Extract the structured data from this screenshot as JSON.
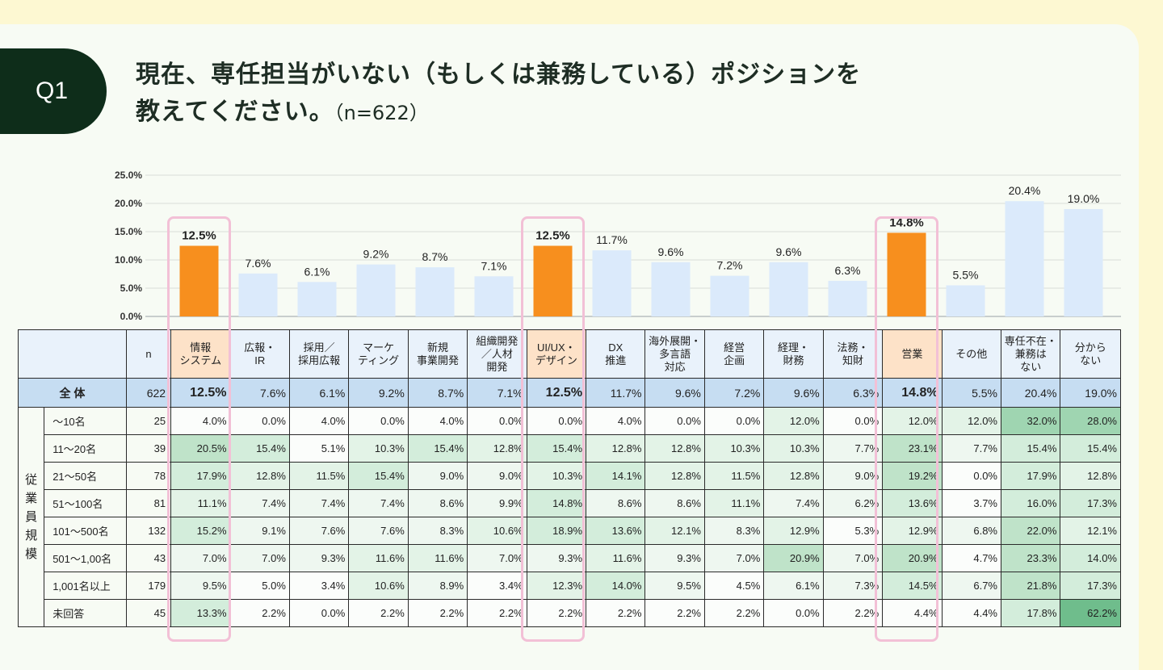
{
  "question": {
    "badge": "Q1",
    "title_line1": "現在、専任担当がいない（もしくは兼務している）ポジションを",
    "title_line2": "教えてください。",
    "n_note": "（n=622）"
  },
  "colors": {
    "highlight_bar": "#f78f1e",
    "normal_bar": "#dbeafb",
    "header_highlight": "#fde2c8",
    "total_row": "#c6ddf2",
    "highlight_frame": "#f2c0d6"
  },
  "chart_data": {
    "type": "bar",
    "categories": [
      "情報システム",
      "広報・IR",
      "採用／採用広報",
      "マーケティング",
      "新規事業開発",
      "組織開発／人材開発",
      "UI/UX・デザイン",
      "DX推進",
      "海外展開・多言語対応",
      "経営企画",
      "経理・財務",
      "法務・知財",
      "営業",
      "その他",
      "専任不在・兼務はない",
      "分からない"
    ],
    "values": [
      12.5,
      7.6,
      6.1,
      9.2,
      8.7,
      7.1,
      12.5,
      11.7,
      9.6,
      7.2,
      9.6,
      6.3,
      14.8,
      5.5,
      20.4,
      19.0
    ],
    "value_labels": [
      "12.5%",
      "7.6%",
      "6.1%",
      "9.2%",
      "8.7%",
      "7.1%",
      "12.5%",
      "11.7%",
      "9.6%",
      "7.2%",
      "9.6%",
      "6.3%",
      "14.8%",
      "5.5%",
      "20.4%",
      "19.0%"
    ],
    "highlighted": [
      0,
      6,
      12
    ],
    "y_ticks": [
      "0.0%",
      "5.0%",
      "10.0%",
      "15.0%",
      "20.0%",
      "25.0%"
    ],
    "ylim": [
      0,
      25
    ],
    "grid": true
  },
  "table": {
    "n_header": "n",
    "col_headers": [
      "情報\nシステム",
      "広報・\nIR",
      "採用／\n採用広報",
      "マーケ\nティング",
      "新規\n事業開発",
      "組織開発\n／人材\n開発",
      "UI/UX・\nデザイン",
      "DX\n推進",
      "海外展開・\n多言語\n対応",
      "経営\n企画",
      "経理・\n財務",
      "法務・\n知財",
      "営業",
      "その他",
      "専任不在・\n兼務は\nない",
      "分から\nない"
    ],
    "total": {
      "label": "全 体",
      "n": "622",
      "values": [
        "12.5%",
        "7.6%",
        "6.1%",
        "9.2%",
        "8.7%",
        "7.1%",
        "12.5%",
        "11.7%",
        "9.6%",
        "7.2%",
        "9.6%",
        "6.3%",
        "14.8%",
        "5.5%",
        "20.4%",
        "19.0%"
      ]
    },
    "group_label": "従\n業\n員\n規\n模",
    "rows": [
      {
        "label": "～10名",
        "n": "25",
        "values": [
          "4.0%",
          "0.0%",
          "4.0%",
          "0.0%",
          "4.0%",
          "0.0%",
          "0.0%",
          "4.0%",
          "0.0%",
          "0.0%",
          "12.0%",
          "0.0%",
          "12.0%",
          "12.0%",
          "32.0%",
          "28.0%"
        ]
      },
      {
        "label": "11～20名",
        "n": "39",
        "values": [
          "20.5%",
          "15.4%",
          "5.1%",
          "10.3%",
          "15.4%",
          "12.8%",
          "15.4%",
          "12.8%",
          "12.8%",
          "10.3%",
          "10.3%",
          "7.7%",
          "23.1%",
          "7.7%",
          "15.4%",
          "15.4%"
        ]
      },
      {
        "label": "21～50名",
        "n": "78",
        "values": [
          "17.9%",
          "12.8%",
          "11.5%",
          "15.4%",
          "9.0%",
          "9.0%",
          "10.3%",
          "14.1%",
          "12.8%",
          "11.5%",
          "12.8%",
          "9.0%",
          "19.2%",
          "0.0%",
          "17.9%",
          "12.8%"
        ]
      },
      {
        "label": "51～100名",
        "n": "81",
        "values": [
          "11.1%",
          "7.4%",
          "7.4%",
          "7.4%",
          "8.6%",
          "9.9%",
          "14.8%",
          "8.6%",
          "8.6%",
          "11.1%",
          "7.4%",
          "6.2%",
          "13.6%",
          "3.7%",
          "16.0%",
          "17.3%"
        ]
      },
      {
        "label": "101～500名",
        "n": "132",
        "values": [
          "15.2%",
          "9.1%",
          "7.6%",
          "7.6%",
          "8.3%",
          "10.6%",
          "18.9%",
          "13.6%",
          "12.1%",
          "8.3%",
          "12.9%",
          "5.3%",
          "12.9%",
          "6.8%",
          "22.0%",
          "12.1%"
        ]
      },
      {
        "label": "501～1,00名",
        "n": "43",
        "values": [
          "7.0%",
          "7.0%",
          "9.3%",
          "11.6%",
          "11.6%",
          "7.0%",
          "9.3%",
          "11.6%",
          "9.3%",
          "7.0%",
          "20.9%",
          "7.0%",
          "20.9%",
          "4.7%",
          "23.3%",
          "14.0%"
        ]
      },
      {
        "label": "1,001名以上",
        "n": "179",
        "values": [
          "9.5%",
          "5.0%",
          "3.4%",
          "10.6%",
          "8.9%",
          "3.4%",
          "12.3%",
          "14.0%",
          "9.5%",
          "4.5%",
          "6.1%",
          "7.3%",
          "14.5%",
          "6.7%",
          "21.8%",
          "17.3%"
        ]
      },
      {
        "label": "未回答",
        "n": "45",
        "values": [
          "13.3%",
          "2.2%",
          "0.0%",
          "2.2%",
          "2.2%",
          "2.2%",
          "2.2%",
          "2.2%",
          "2.2%",
          "2.2%",
          "0.0%",
          "2.2%",
          "4.4%",
          "4.4%",
          "17.8%",
          "62.2%"
        ]
      }
    ]
  }
}
